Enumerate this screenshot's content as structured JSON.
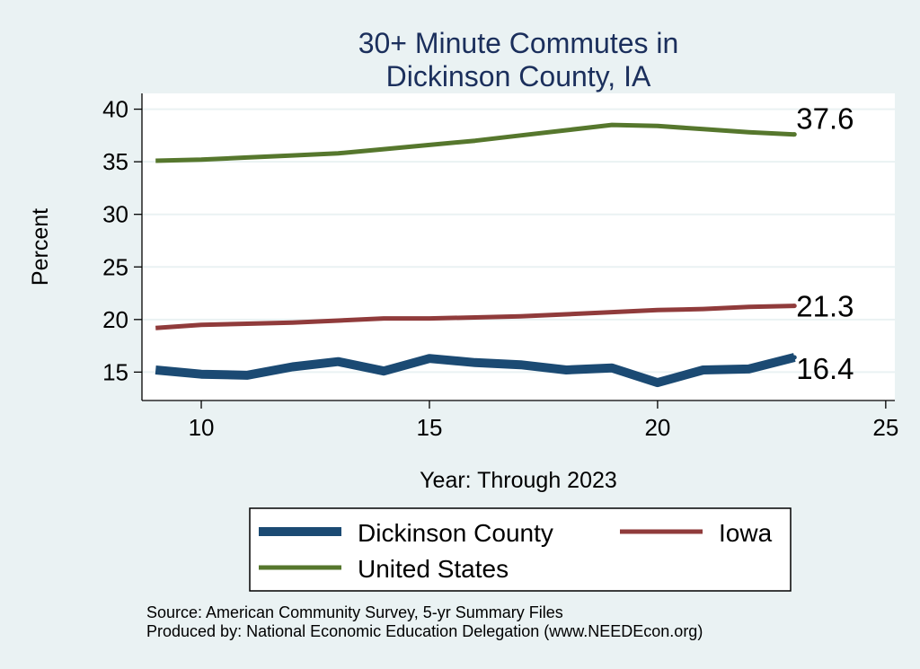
{
  "colors": {
    "background": "#eaf2f3",
    "plot_background": "#ffffff",
    "title": "#1b2f5c",
    "text": "#000000",
    "grid": "#eaf2f3",
    "dickinson": "#1b4a73",
    "iowa": "#903b3b",
    "us": "#56772d"
  },
  "chart_data": {
    "type": "line",
    "title": [
      "30+ Minute Commutes in",
      "Dickinson County, IA"
    ],
    "xlabel": "Year: Through 2023",
    "ylabel": "Percent",
    "xlim": [
      8.7,
      25.2
    ],
    "ylim": [
      12.3,
      41.5
    ],
    "x_ticks": [
      10,
      15,
      20,
      25
    ],
    "y_ticks": [
      15,
      20,
      25,
      30,
      35,
      40
    ],
    "grid": true,
    "legend_position": "bottom",
    "x": [
      9,
      10,
      11,
      12,
      13,
      14,
      15,
      16,
      17,
      18,
      19,
      20,
      21,
      22,
      23
    ],
    "series": [
      {
        "name": "Dickinson County",
        "color_key": "dickinson",
        "weight": "thick",
        "values": [
          15.2,
          14.8,
          14.7,
          15.5,
          16.0,
          15.1,
          16.3,
          15.9,
          15.7,
          15.2,
          15.4,
          14.0,
          15.2,
          15.3,
          16.4
        ],
        "end_label": "16.4"
      },
      {
        "name": "Iowa",
        "color_key": "iowa",
        "weight": "medium",
        "values": [
          19.2,
          19.5,
          19.6,
          19.7,
          19.9,
          20.1,
          20.1,
          20.2,
          20.3,
          20.5,
          20.7,
          20.9,
          21.0,
          21.2,
          21.3
        ],
        "end_label": "21.3"
      },
      {
        "name": "United States",
        "color_key": "us",
        "weight": "medium",
        "values": [
          35.1,
          35.2,
          35.4,
          35.6,
          35.8,
          36.2,
          36.6,
          37.0,
          37.5,
          38.0,
          38.5,
          38.4,
          38.1,
          37.8,
          37.6
        ],
        "end_label": "37.6"
      }
    ]
  },
  "footnotes": {
    "source": "Source: American Community Survey, 5-yr Summary Files",
    "producer": "Produced by: National Economic Education Delegation (www.NEEDEcon.org)"
  }
}
